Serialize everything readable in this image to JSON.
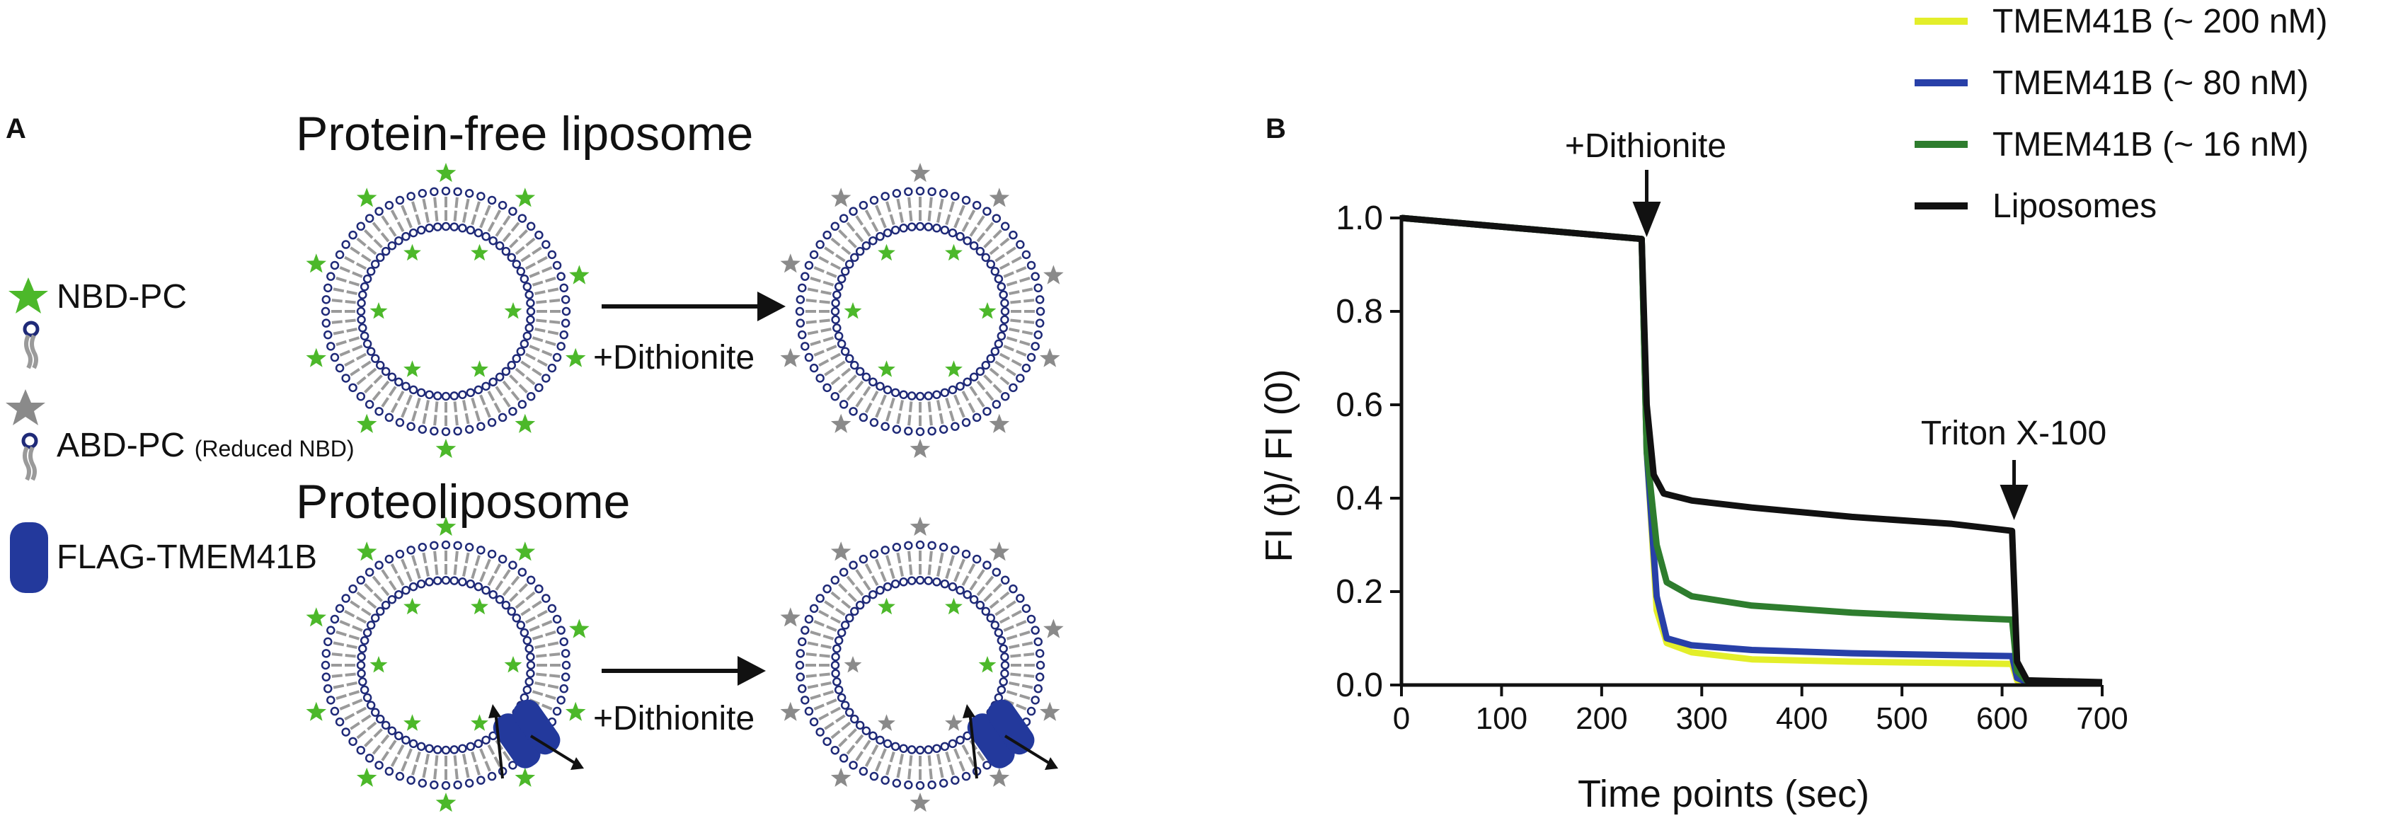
{
  "panel_a": {
    "letter": "A",
    "title_top": "Protein-free liposome",
    "title_bottom": "Proteoliposome",
    "arrow_label_top": "+Dithionite",
    "arrow_label_bottom": "+Dithionite",
    "legend": {
      "nbd": "NBD-PC",
      "abd": "ABD-PC",
      "abd_note": "(Reduced NBD)",
      "flag": "FLAG-TMEM41B"
    },
    "colors": {
      "nbd_star": "#4cb82a",
      "abd_star": "#8a8a8a",
      "headgroup": "#1f2a78",
      "tail": "#9a9a9a",
      "protein": "#23399c"
    }
  },
  "panel_b": {
    "letter": "B",
    "annotation_dithionite": "+Dithionite",
    "annotation_triton": "Triton X-100"
  },
  "chart_data": {
    "type": "line",
    "xlabel": "Time points (sec)",
    "ylabel": "FI (t)/ FI (0)",
    "xlim": [
      0,
      700
    ],
    "ylim": [
      0,
      1.0
    ],
    "xticks": [
      "0",
      "100",
      "200",
      "300",
      "400",
      "500",
      "600",
      "700"
    ],
    "yticks": [
      "0.0",
      "0.2",
      "0.4",
      "0.6",
      "0.8",
      "1.0"
    ],
    "legend_position": "top-right",
    "series": [
      {
        "name": "TMEM41B (~ 200 nM)",
        "color": "#e3ee2a",
        "x": [
          0,
          240,
          245,
          255,
          265,
          290,
          350,
          450,
          550,
          610,
          615,
          625,
          700
        ],
        "y": [
          1.0,
          0.955,
          0.5,
          0.16,
          0.09,
          0.07,
          0.055,
          0.05,
          0.047,
          0.045,
          0.01,
          0.005,
          0.004
        ]
      },
      {
        "name": "TMEM41B (~ 80 nM)",
        "color": "#2840a8",
        "x": [
          0,
          240,
          245,
          255,
          265,
          290,
          350,
          450,
          550,
          610,
          615,
          625,
          700
        ],
        "y": [
          1.0,
          0.955,
          0.5,
          0.19,
          0.1,
          0.085,
          0.075,
          0.068,
          0.064,
          0.062,
          0.015,
          0.006,
          0.004
        ]
      },
      {
        "name": "TMEM41B (~ 16 nM)",
        "color": "#2e7d2e",
        "x": [
          0,
          240,
          245,
          255,
          265,
          290,
          350,
          450,
          550,
          610,
          615,
          625,
          700
        ],
        "y": [
          1.0,
          0.955,
          0.5,
          0.3,
          0.22,
          0.19,
          0.17,
          0.155,
          0.145,
          0.14,
          0.03,
          0.008,
          0.004
        ]
      },
      {
        "name": "Liposomes",
        "color": "#111111",
        "x": [
          0,
          240,
          245,
          252,
          262,
          290,
          350,
          450,
          550,
          610,
          615,
          625,
          700
        ],
        "y": [
          1.0,
          0.955,
          0.6,
          0.45,
          0.41,
          0.395,
          0.38,
          0.36,
          0.345,
          0.33,
          0.05,
          0.01,
          0.006
        ]
      }
    ]
  }
}
